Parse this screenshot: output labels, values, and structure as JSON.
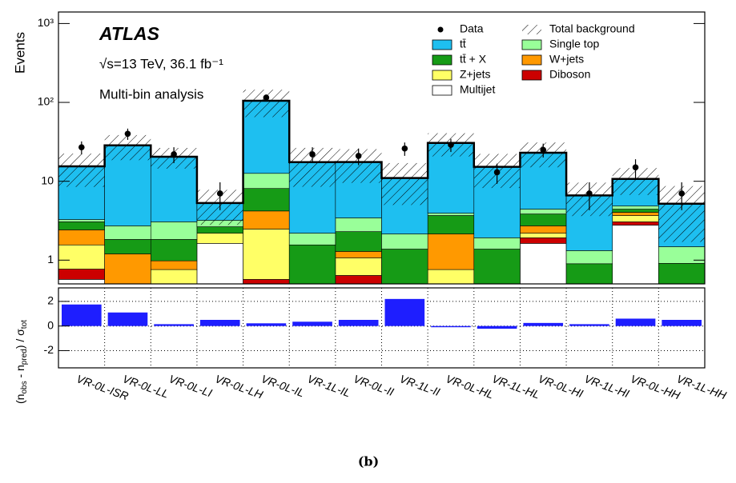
{
  "chart_data": [
    {
      "type": "bar",
      "stacked": true,
      "log_scale": true,
      "ylabel": "Events",
      "ylim": [
        0.5,
        1400
      ],
      "yticks": [
        1,
        10,
        {
          "value": 100,
          "label": "10²"
        },
        {
          "value": 1000,
          "label": "10³"
        }
      ],
      "annotations": [
        "ATLAS",
        "√s=13 TeV, 36.1 fb⁻¹",
        "Multi-bin analysis"
      ],
      "series": [
        {
          "name": "Multijet",
          "color": "#ffffff",
          "values": [
            0.57,
            0,
            0,
            1.63,
            0,
            0,
            0,
            0,
            0,
            0,
            1.63,
            0,
            2.78,
            0
          ]
        },
        {
          "name": "Diboson",
          "color": "#cc0000",
          "values": [
            0.2,
            0,
            0,
            0,
            0.57,
            0,
            0.64,
            0,
            0,
            0,
            0.29,
            0,
            0.28,
            0
          ]
        },
        {
          "name": "Z+jets",
          "color": "#ffff66",
          "values": [
            0.79,
            0,
            0.76,
            0.57,
            1.91,
            0,
            0.43,
            0,
            0.76,
            0,
            0.28,
            0,
            0.62,
            0
          ]
        },
        {
          "name": "W+jets",
          "color": "#ff9900",
          "values": [
            0.86,
            1.2,
            0.22,
            0,
            1.72,
            0,
            0.22,
            0,
            1.39,
            0,
            0.52,
            0,
            0.36,
            0
          ]
        },
        {
          "name": "tt̄ + X",
          "color": "#169b16",
          "values": [
            0.64,
            0.63,
            0.85,
            0.45,
            3.9,
            1.56,
            1.01,
            1.38,
            1.53,
            1.38,
            1.13,
            0.9,
            0.39,
            0.91
          ]
        },
        {
          "name": "Single top",
          "color": "#99ff99",
          "values": [
            0.21,
            0.89,
            1.23,
            0.55,
            4.5,
            0.64,
            1.13,
            0.77,
            0.26,
            0.54,
            0.58,
            0.42,
            0.43,
            0.57
          ]
        },
        {
          "name": "tt̄",
          "color": "#1ebff0",
          "values": [
            12.2,
            25.8,
            17.4,
            2.1,
            92.4,
            15.3,
            14.1,
            8.85,
            26.7,
            13.3,
            18.6,
            5.3,
            5.84,
            3.72
          ]
        }
      ],
      "data": {
        "name": "Data",
        "color": "#000000",
        "values": [
          27,
          40,
          22,
          7,
          115,
          22,
          21,
          26,
          29,
          13,
          25,
          7,
          15,
          7
        ],
        "errors": [
          5,
          6.5,
          5,
          2.7,
          11,
          5,
          5,
          5,
          5.5,
          3.7,
          5,
          2.7,
          4,
          2.7
        ]
      },
      "total_background": {
        "name": "Total background",
        "uncertainty": [
          7,
          10,
          6,
          2.5,
          40,
          9,
          8,
          6,
          10,
          7,
          8,
          3,
          4,
          3.5
        ]
      }
    },
    {
      "type": "bar",
      "ylim": [
        -3.4,
        3.1
      ],
      "yticks": [
        -2,
        0,
        2
      ],
      "grid": true,
      "color": "#1e1eff",
      "ylabel_parts": [
        "(n",
        "obs",
        " - n",
        "pred",
        ") / σ",
        "tot"
      ],
      "categories": [
        "VR-0L-ISR",
        "VR-0L-LL",
        "VR-0L-LI",
        "VR-0L-LH",
        "VR-0L-IL",
        "VR-1L-IL",
        "VR-0L-II",
        "VR-1L-II",
        "VR-0L-HL",
        "VR-1L-HL",
        "VR-0L-HI",
        "VR-1L-HI",
        "VR-0L-HH",
        "VR-1L-HH"
      ],
      "values": [
        1.75,
        1.1,
        0.15,
        0.5,
        0.22,
        0.35,
        0.5,
        2.2,
        -0.05,
        -0.22,
        0.25,
        0.15,
        0.6,
        0.5
      ]
    }
  ],
  "caption": "(b)"
}
